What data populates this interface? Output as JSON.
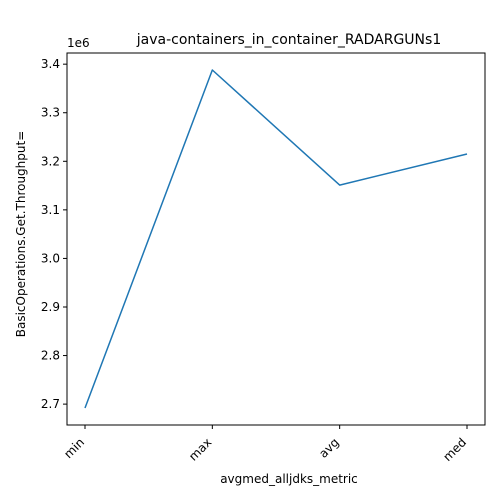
{
  "chart_data": {
    "type": "line",
    "title": "java-containers_in_container_RADARGUNs1",
    "xlabel": "avgmed_alljdks_metric",
    "ylabel": "BasicOperations.Get.Throughput=",
    "y_offset_label": "1e6",
    "categories": [
      "min",
      "max",
      "avg",
      "med"
    ],
    "series": [
      {
        "values": [
          2692000,
          3388000,
          3151000,
          3215000
        ],
        "color": "#1f77b4"
      }
    ],
    "yticks": [
      2.7,
      2.8,
      2.9,
      3.0,
      3.1,
      3.2,
      3.3,
      3.4
    ],
    "ytick_labels": [
      "2.7",
      "2.8",
      "2.9",
      "3.0",
      "3.1",
      "3.2",
      "3.3",
      "3.4"
    ],
    "ytick_scale": 1000000,
    "ylim": [
      2657000,
      3423000
    ],
    "grid": false,
    "legend": "none"
  }
}
